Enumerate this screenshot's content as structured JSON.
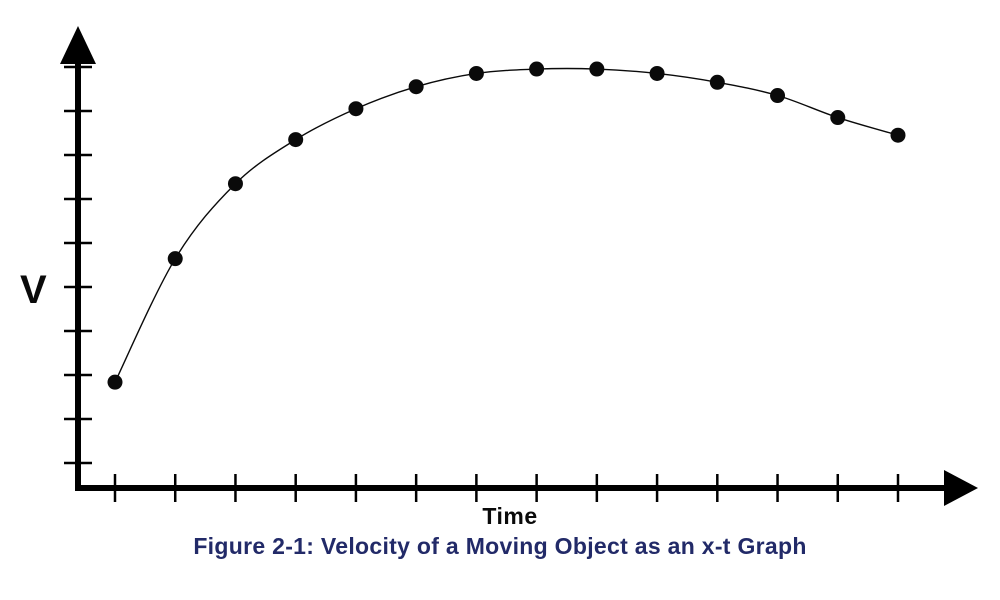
{
  "figure": {
    "caption": "Figure 2-1: Velocity of a Moving Object as an x-t Graph",
    "caption_color": "#222a68"
  },
  "chart_data": {
    "type": "scatter",
    "title": "",
    "xlabel": "Time",
    "ylabel": "V",
    "x": [
      1,
      2,
      3,
      4,
      5,
      6,
      7,
      8,
      9,
      10,
      11,
      12,
      13,
      14
    ],
    "y": [
      2.4,
      5.2,
      6.9,
      7.9,
      8.6,
      9.1,
      9.4,
      9.5,
      9.5,
      9.4,
      9.2,
      8.9,
      8.4,
      8.0
    ],
    "xlim": [
      0,
      15
    ],
    "ylim": [
      0,
      10.5
    ],
    "x_tick_count": 14,
    "y_tick_count": 10,
    "grid": false,
    "legend": false,
    "connect_points": true,
    "marker_color": "#0a0a0a",
    "line_color": "#0a0a0a",
    "axis_color": "#000000"
  }
}
